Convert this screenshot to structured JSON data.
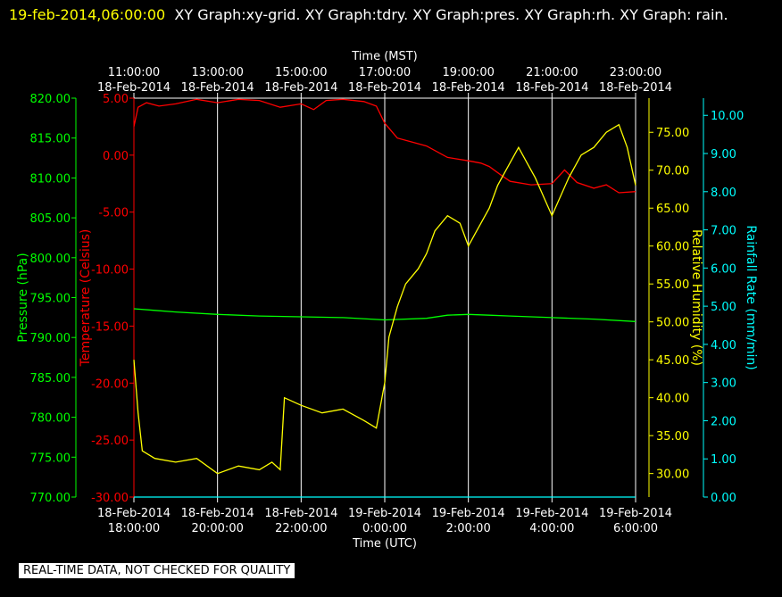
{
  "header": {
    "timestamp": "19-feb-2014,06:00:00",
    "titles": "XY Graph:xy-grid.  XY Graph:tdry.  XY Graph:pres.  XY Graph:rh.  XY Graph: rain."
  },
  "footer_note": "REAL-TIME DATA, NOT CHECKED FOR QUALITY",
  "colors": {
    "background": "#000000",
    "pressure": "#00ff00",
    "temperature": "#ff0000",
    "humidity": "#ffff00",
    "rain": "#00ffff",
    "grid": "#ffffff"
  },
  "chart_data": {
    "type": "line",
    "grid": true,
    "x_hours_utc_range": [
      18,
      30
    ],
    "x_top": {
      "label": "Time (MST)",
      "ticks": [
        {
          "hour": 18,
          "time": "11:00:00",
          "date": "18-Feb-2014"
        },
        {
          "hour": 20,
          "time": "13:00:00",
          "date": "18-Feb-2014"
        },
        {
          "hour": 22,
          "time": "15:00:00",
          "date": "18-Feb-2014"
        },
        {
          "hour": 24,
          "time": "17:00:00",
          "date": "18-Feb-2014"
        },
        {
          "hour": 26,
          "time": "19:00:00",
          "date": "18-Feb-2014"
        },
        {
          "hour": 28,
          "time": "21:00:00",
          "date": "18-Feb-2014"
        },
        {
          "hour": 30,
          "time": "23:00:00",
          "date": "18-Feb-2014"
        }
      ]
    },
    "x_bottom": {
      "label": "Time (UTC)",
      "ticks": [
        {
          "hour": 18,
          "date": "18-Feb-2014",
          "time": "18:00:00"
        },
        {
          "hour": 20,
          "date": "18-Feb-2014",
          "time": "20:00:00"
        },
        {
          "hour": 22,
          "date": "18-Feb-2014",
          "time": "22:00:00"
        },
        {
          "hour": 24,
          "date": "19-Feb-2014",
          "time": "0:00:00"
        },
        {
          "hour": 26,
          "date": "19-Feb-2014",
          "time": "2:00:00"
        },
        {
          "hour": 28,
          "date": "19-Feb-2014",
          "time": "4:00:00"
        },
        {
          "hour": 30,
          "date": "19-Feb-2014",
          "time": "6:00:00"
        }
      ]
    },
    "axes": {
      "pressure": {
        "label": "Pressure (hPa)",
        "range": [
          770,
          820
        ],
        "ticks": [
          "770.00",
          "775.00",
          "780.00",
          "785.00",
          "790.00",
          "795.00",
          "800.00",
          "805.00",
          "810.00",
          "815.00",
          "820.00"
        ]
      },
      "temperature": {
        "label": "Temperature (Celsius)",
        "range": [
          -30,
          5
        ],
        "ticks": [
          "-30.00",
          "-25.00",
          "-20.00",
          "-15.00",
          "-10.00",
          "-5.00",
          "0.00",
          "5.00"
        ]
      },
      "humidity": {
        "label": "Relative Humidity (%)",
        "range": [
          26.9,
          79.5
        ],
        "ticks": [
          "30.00",
          "35.00",
          "40.00",
          "45.00",
          "50.00",
          "55.00",
          "60.00",
          "65.00",
          "70.00",
          "75.00"
        ]
      },
      "rain": {
        "label": "Rainfall Rate (mm/min)",
        "range": [
          0,
          10.45
        ],
        "ticks": [
          "0.00",
          "1.00",
          "2.00",
          "3.00",
          "4.00",
          "5.00",
          "6.00",
          "7.00",
          "8.00",
          "9.00",
          "10.00"
        ]
      }
    },
    "series": [
      {
        "axis": "temperature",
        "x": [
          18,
          18.1,
          18.3,
          18.6,
          19,
          19.5,
          20,
          20.5,
          21,
          21.5,
          22,
          22.3,
          22.6,
          23,
          23.5,
          23.8,
          24,
          24.3,
          24.6,
          25,
          25.5,
          26,
          26.3,
          26.5,
          26.8,
          27,
          27.5,
          28,
          28.3,
          28.6,
          29,
          29.3,
          29.6,
          30
        ],
        "y": [
          2.5,
          4.2,
          4.6,
          4.3,
          4.5,
          4.9,
          4.6,
          4.9,
          4.8,
          4.2,
          4.5,
          4.0,
          4.8,
          4.9,
          4.7,
          4.3,
          2.8,
          1.5,
          1.2,
          0.8,
          -0.2,
          -0.5,
          -0.7,
          -1.0,
          -1.8,
          -2.3,
          -2.6,
          -2.5,
          -1.3,
          -2.4,
          -2.9,
          -2.6,
          -3.3,
          -3.2
        ]
      },
      {
        "axis": "pressure",
        "x": [
          18,
          18.5,
          19,
          20,
          21,
          22,
          23,
          24,
          25,
          25.5,
          26,
          26.5,
          27,
          27.5,
          28,
          29,
          30
        ],
        "y": [
          793.6,
          793.4,
          793.2,
          792.9,
          792.7,
          792.6,
          792.5,
          792.2,
          792.4,
          792.8,
          792.9,
          792.8,
          792.7,
          792.6,
          792.5,
          792.3,
          792.0
        ]
      },
      {
        "axis": "humidity",
        "x": [
          18,
          18.1,
          18.2,
          18.5,
          19,
          19.5,
          20,
          20.5,
          21,
          21.3,
          21.5,
          21.6,
          22,
          22.5,
          23,
          23.5,
          23.8,
          24,
          24.1,
          24.3,
          24.5,
          24.8,
          25,
          25.2,
          25.5,
          25.8,
          26,
          26.2,
          26.5,
          26.7,
          27,
          27.2,
          27.4,
          27.6,
          28,
          28.4,
          28.7,
          29,
          29.3,
          29.6,
          29.8,
          30
        ],
        "y": [
          45,
          38,
          33,
          32,
          31.5,
          32,
          30,
          31,
          30.5,
          31.5,
          30.5,
          40,
          39,
          38,
          38.5,
          37,
          36,
          42,
          48,
          52,
          55,
          57,
          59,
          62,
          64,
          63,
          60,
          62,
          65,
          68,
          71,
          73,
          71,
          69,
          64,
          69,
          72,
          73,
          75,
          76,
          73,
          68
        ]
      },
      {
        "axis": "rain",
        "x": [
          18,
          30
        ],
        "y": [
          0,
          0
        ]
      }
    ]
  }
}
